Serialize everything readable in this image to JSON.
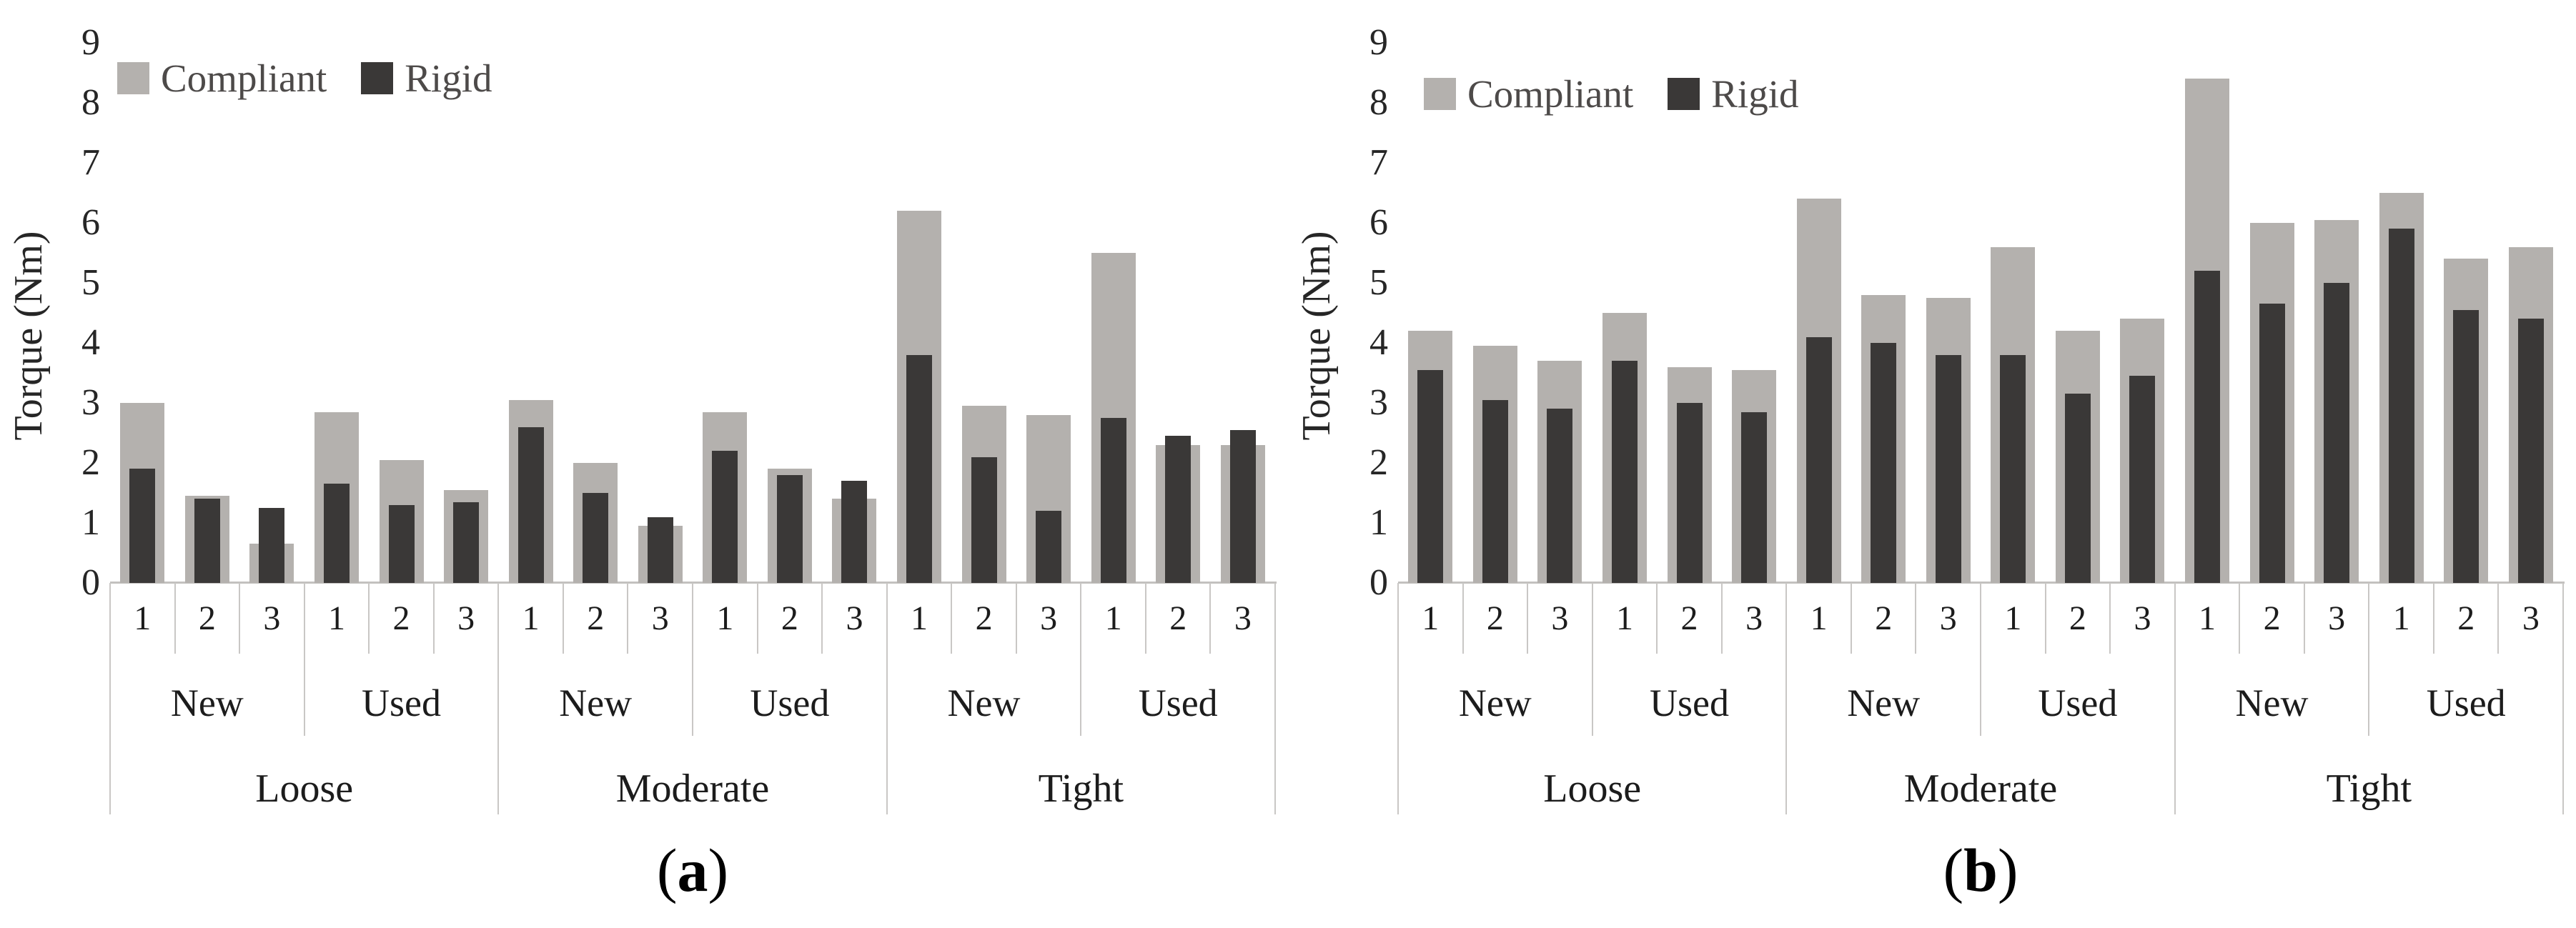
{
  "figure": {
    "background": "#ffffff",
    "axis_line_color": "#c3c1bf",
    "separator_color": "#c9c7c5"
  },
  "chart_data": [
    {
      "type": "bar",
      "caption_prefix": "(",
      "caption_letter": "a",
      "caption_suffix": ")",
      "ylabel": "Torque (Nm)",
      "ylim": [
        0,
        9
      ],
      "ytick_step": 1,
      "yticks": [
        "9",
        "8",
        "7",
        "6",
        "5",
        "4",
        "3",
        "2",
        "1",
        "0"
      ],
      "legend_position": "top-left-inside",
      "grid": "off",
      "legend": [
        {
          "name": "Compliant",
          "color": "#b4b1ae"
        },
        {
          "name": "Rigid",
          "color": "#3a3837"
        }
      ],
      "trial_labels": [
        "1",
        "2",
        "3",
        "1",
        "2",
        "3",
        "1",
        "2",
        "3",
        "1",
        "2",
        "3",
        "1",
        "2",
        "3",
        "1",
        "2",
        "3"
      ],
      "condition_labels": [
        "New",
        "Used",
        "New",
        "Used",
        "New",
        "Used"
      ],
      "group_labels": [
        "Loose",
        "Moderate",
        "Tight"
      ],
      "series": [
        {
          "name": "Compliant",
          "values": [
            3.0,
            1.45,
            0.65,
            2.85,
            2.05,
            1.55,
            3.05,
            2.0,
            0.95,
            2.85,
            1.9,
            1.4,
            6.2,
            2.95,
            2.8,
            5.5,
            2.3,
            2.3
          ]
        },
        {
          "name": "Rigid",
          "values": [
            1.9,
            1.4,
            1.25,
            1.65,
            1.3,
            1.35,
            2.6,
            1.5,
            1.1,
            2.2,
            1.8,
            1.7,
            3.8,
            2.1,
            1.2,
            2.75,
            2.45,
            2.55
          ]
        }
      ]
    },
    {
      "type": "bar",
      "caption_prefix": "(",
      "caption_letter": "b",
      "caption_suffix": ")",
      "ylabel": "Torque (Nm)",
      "ylim": [
        0,
        9
      ],
      "ytick_step": 1,
      "yticks": [
        "9",
        "8",
        "7",
        "6",
        "5",
        "4",
        "3",
        "2",
        "1",
        "0"
      ],
      "legend_position": "top-left-inside",
      "grid": "off",
      "legend": [
        {
          "name": "Compliant",
          "color": "#b4b1ae"
        },
        {
          "name": "Rigid",
          "color": "#3a3837"
        }
      ],
      "trial_labels": [
        "1",
        "2",
        "3",
        "1",
        "2",
        "3",
        "1",
        "2",
        "3",
        "1",
        "2",
        "3",
        "1",
        "2",
        "3",
        "1",
        "2",
        "3"
      ],
      "condition_labels": [
        "New",
        "Used",
        "New",
        "Used",
        "New",
        "Used"
      ],
      "group_labels": [
        "Loose",
        "Moderate",
        "Tight"
      ],
      "series": [
        {
          "name": "Compliant",
          "values": [
            4.2,
            3.95,
            3.7,
            4.5,
            3.6,
            3.55,
            6.4,
            4.8,
            4.75,
            5.6,
            4.2,
            4.4,
            8.4,
            6.0,
            6.05,
            6.5,
            5.4,
            5.6
          ]
        },
        {
          "name": "Rigid",
          "values": [
            3.55,
            3.05,
            2.9,
            3.7,
            3.0,
            2.85,
            4.1,
            4.0,
            3.8,
            3.8,
            3.15,
            3.45,
            5.2,
            4.65,
            5.0,
            5.9,
            4.55,
            4.4
          ]
        }
      ]
    }
  ]
}
